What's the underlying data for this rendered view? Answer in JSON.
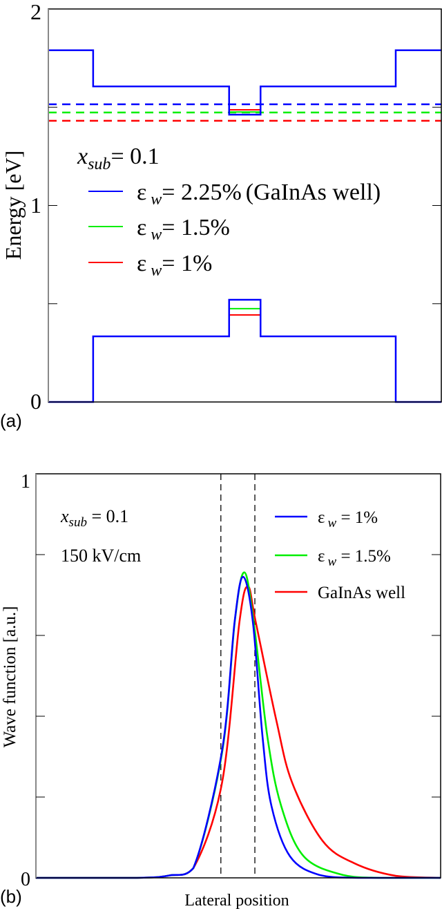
{
  "chart_data": [
    {
      "type": "line",
      "panel_label": "(a)",
      "xlabel": "",
      "ylabel": "Energy [eV]",
      "xlim": [
        0,
        100
      ],
      "ylim": [
        0,
        2
      ],
      "y_tick_labels": [
        "0",
        "1",
        "2"
      ],
      "y_minor_ticks": [
        0.5,
        1.5
      ],
      "grid": false,
      "legend_placement": "center-left",
      "annotation": {
        "var": "x",
        "sub": "sub",
        "rest": "= 0.1"
      },
      "legend": [
        {
          "sym": "ε",
          "sub": "w",
          "rest": "= 2.25%",
          "extra": "(GaInAs well)",
          "color": "#0000ff"
        },
        {
          "sym": "ε",
          "sub": "w",
          "rest": "= 1.5%",
          "extra": "",
          "color": "#00ee00"
        },
        {
          "sym": "ε",
          "sub": "w",
          "rest": "= 1%",
          "extra": "",
          "color": "#ff0000"
        }
      ],
      "conduction_band_profile": {
        "color": "#0000ff",
        "x": [
          0,
          11.4,
          11.4,
          46,
          46,
          54,
          54,
          88.4,
          88.4,
          100
        ],
        "y": [
          1.79,
          1.79,
          1.606,
          1.606,
          1.462,
          1.462,
          1.606,
          1.606,
          1.79,
          1.79
        ]
      },
      "valence_band_profile": {
        "color": "#0000ff",
        "x": [
          0,
          11.4,
          11.4,
          46,
          46,
          54,
          54,
          88.4,
          88.4,
          100
        ],
        "y": [
          0,
          0,
          0.334,
          0.334,
          0.52,
          0.52,
          0.334,
          0.334,
          0,
          0
        ]
      },
      "dashed_levels": [
        {
          "color": "#0000ff",
          "y": 1.515
        },
        {
          "color": "#00ee00",
          "y": 1.473
        },
        {
          "color": "#ff0000",
          "y": 1.431
        }
      ],
      "well_levels": [
        {
          "color": "#ff0000",
          "band": "conduction",
          "y": 1.487
        },
        {
          "color": "#00ee00",
          "band": "conduction",
          "y": 1.476
        },
        {
          "color": "#00ee00",
          "band": "valence",
          "y": 0.475
        },
        {
          "color": "#ff0000",
          "band": "valence",
          "y": 0.443
        }
      ]
    },
    {
      "type": "line",
      "panel_label": "(b)",
      "xlabel": "Lateral position",
      "ylabel": "Wave function [a.u.]",
      "xlim": [
        0,
        100
      ],
      "ylim": [
        0,
        1
      ],
      "y_tick_labels": [
        "0",
        "1"
      ],
      "y_minor_ticks": [
        0.2,
        0.4,
        0.6,
        0.8
      ],
      "grid": false,
      "legend_placement": "top-right",
      "annotations": [
        {
          "var": "x",
          "sub": "sub",
          "rest": " = 0.1"
        },
        {
          "text": "150 kV/cm"
        }
      ],
      "well_boundaries_dashed": [
        45.7,
        54.1
      ],
      "series": [
        {
          "name_sym": "ε",
          "name_sub": "w",
          "name_rest": " = 1%",
          "color": "#0000ff",
          "x": [
            0,
            25,
            33,
            38.9,
            46.0,
            49.1,
            51.2,
            53.6,
            56.0,
            58.2,
            62.8,
            70.1,
            80,
            100
          ],
          "y": [
            0,
            0,
            0.006,
            0.024,
            0.315,
            0.634,
            0.745,
            0.634,
            0.349,
            0.178,
            0.053,
            0.007,
            0,
            0
          ]
        },
        {
          "name_sym": "ε",
          "name_sub": "w",
          "name_rest": " = 1.5%",
          "color": "#00ee00",
          "x": [
            0,
            25,
            33,
            38.9,
            46.0,
            49.2,
            51.5,
            53.8,
            57.2,
            60.6,
            66.2,
            75.9,
            85,
            100
          ],
          "y": [
            0,
            0,
            0.006,
            0.024,
            0.31,
            0.64,
            0.756,
            0.634,
            0.349,
            0.178,
            0.053,
            0.007,
            0,
            0
          ]
        },
        {
          "name": "GaInAs well",
          "color": "#ff0000",
          "x": [
            0,
            25,
            33,
            38.9,
            46.0,
            50.3,
            52.4,
            54.3,
            59.4,
            63.3,
            70.8,
            78.7,
            88.9,
            100
          ],
          "y": [
            0,
            0,
            0.006,
            0.024,
            0.236,
            0.634,
            0.721,
            0.634,
            0.39,
            0.236,
            0.092,
            0.036,
            0.005,
            0
          ]
        }
      ]
    }
  ]
}
